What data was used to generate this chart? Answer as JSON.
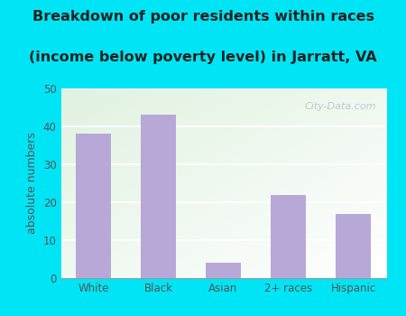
{
  "categories": [
    "White",
    "Black",
    "Asian",
    "2+ races",
    "Hispanic"
  ],
  "values": [
    38,
    43,
    4,
    22,
    17
  ],
  "bar_color": "#b8a8d8",
  "title_line1": "Breakdown of poor residents within races",
  "title_line2": "(income below poverty level) in Jarratt, VA",
  "ylabel": "absolute numbers",
  "ylim": [
    0,
    50
  ],
  "yticks": [
    0,
    10,
    20,
    30,
    40,
    50
  ],
  "bg_outer": "#00e5f5",
  "watermark": "City-Data.com",
  "title_fontsize": 11.5,
  "ylabel_fontsize": 9,
  "tick_fontsize": 8.5,
  "title_color": "#222222",
  "tick_color": "#555555"
}
